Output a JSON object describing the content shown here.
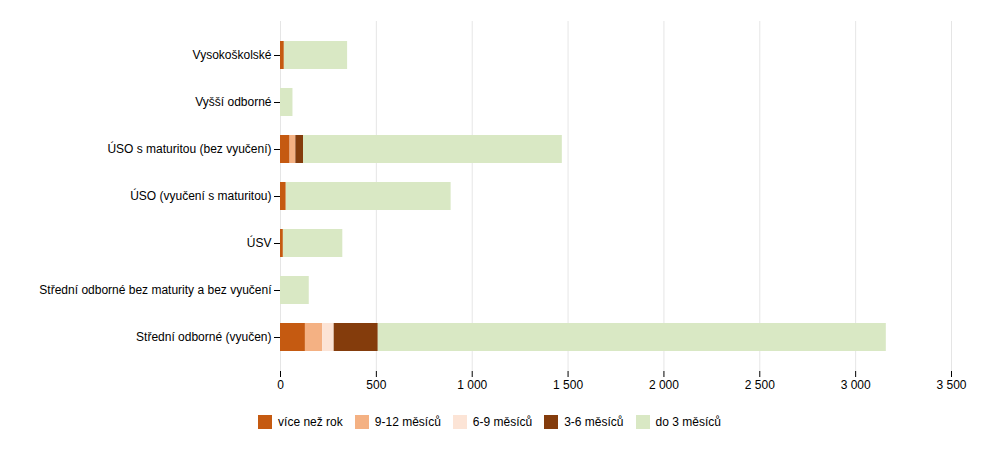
{
  "chart_data": {
    "type": "bar",
    "orientation": "horizontal",
    "stacked": true,
    "categories": [
      "Střední odborné (vyučen)",
      "Střední odborné bez maturity a bez vyučení",
      "ÚSV",
      "ÚSO (vyučení s maturitou)",
      "ÚSO s maturitou (bez vyučení)",
      "Vyšší odborné",
      "Vysokoškolské"
    ],
    "series": [
      {
        "name": "více než rok",
        "color": "#c55a11",
        "values": [
          130,
          0,
          15,
          30,
          50,
          0,
          20
        ]
      },
      {
        "name": "9-12 měsíců",
        "color": "#f4b183",
        "values": [
          90,
          0,
          0,
          0,
          30,
          0,
          0
        ]
      },
      {
        "name": "6-9  měsíců",
        "color": "#fce4d6",
        "values": [
          60,
          0,
          0,
          0,
          0,
          0,
          0
        ]
      },
      {
        "name": "3-6  měsíců",
        "color": "#843c0c",
        "values": [
          230,
          0,
          0,
          0,
          40,
          0,
          0
        ]
      },
      {
        "name": "do 3 měsíců",
        "color": "#d9e8c4",
        "values": [
          2650,
          150,
          310,
          860,
          1350,
          65,
          330
        ]
      }
    ],
    "xlim": [
      0,
      3500
    ],
    "xticks": [
      0,
      500,
      {
        "value": 1000,
        "label": "1 000"
      },
      {
        "value": 1500,
        "label": "1 500"
      },
      {
        "value": 2000,
        "label": "2 000"
      },
      {
        "value": 2500,
        "label": "2 500"
      },
      {
        "value": 3000,
        "label": "3 000"
      },
      {
        "value": 3500,
        "label": "3 500"
      }
    ],
    "grid": true,
    "legend": "bottom"
  }
}
